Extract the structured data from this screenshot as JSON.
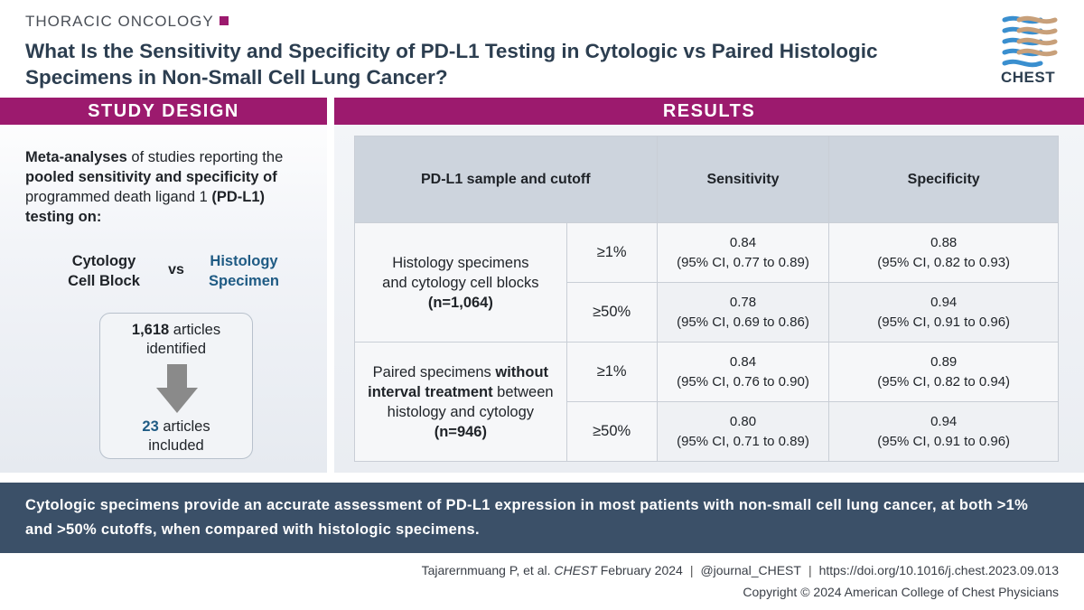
{
  "header": {
    "kicker": "THORACIC ONCOLOGY",
    "title": "What Is the Sensitivity and Specificity of PD-L1 Testing in Cytologic vs Paired Histologic Specimens in Non-Small Cell Lung Cancer?",
    "logo_text": "CHEST",
    "logo_icon": "chest-logo-icon",
    "accent_color": "#9c1a6e"
  },
  "study_design": {
    "heading": "STUDY DESIGN",
    "desc_b1": "Meta-analyses",
    "desc_t1": " of studies reporting the ",
    "desc_b2": "pooled sensitivity and specificity of",
    "desc_t2": " programmed death ligand 1 ",
    "desc_b3": "(PD-L1)",
    "desc_t3": " ",
    "desc_b4": "testing on:",
    "cytology_line1": "Cytology",
    "cytology_line2": "Cell Block",
    "vs": "vs",
    "histology_line1": "Histology",
    "histology_line2": "Specimen",
    "flow_top_num": "1,618",
    "flow_top_text1": " articles",
    "flow_top_text2": "identified",
    "flow_bot_num": "23",
    "flow_bot_text1": " articles",
    "flow_bot_text2": "included"
  },
  "results": {
    "heading": "RESULTS",
    "columns": [
      "PD-L1 sample and cutoff",
      "Sensitivity",
      "Specificity"
    ],
    "group1": {
      "line1": "Histology specimens",
      "line2": "and cytology cell blocks",
      "n": "(n=1,064)",
      "rows": [
        {
          "cutoff": "≥1%",
          "sens": "0.84",
          "sens_ci": "(95% CI, 0.77 to 0.89)",
          "spec": "0.88",
          "spec_ci": "(95% CI, 0.82 to 0.93)"
        },
        {
          "cutoff": "≥50%",
          "sens": "0.78",
          "sens_ci": "(95% CI, 0.69 to 0.86)",
          "spec": "0.94",
          "spec_ci": "(95% CI, 0.91 to 0.96)"
        }
      ]
    },
    "group2": {
      "t1": "Paired specimens ",
      "b1": "without",
      "b2": "interval treatment",
      "t2": " between",
      "t3": "histology and cytology",
      "n": "(n=946)",
      "rows": [
        {
          "cutoff": "≥1%",
          "sens": "0.84",
          "sens_ci": "(95% CI, 0.76 to 0.90)",
          "spec": "0.89",
          "spec_ci": "(95% CI, 0.82 to 0.94)"
        },
        {
          "cutoff": "≥50%",
          "sens": "0.80",
          "sens_ci": "(95% CI, 0.71 to 0.89)",
          "spec": "0.94",
          "spec_ci": "(95% CI, 0.91 to 0.96)"
        }
      ]
    }
  },
  "conclusion": "Cytologic specimens provide an accurate assessment of PD-L1 expression in most patients with non-small cell lung cancer, at both >1% and >50% cutoffs, when compared with histologic specimens.",
  "footer": {
    "authors": "Tajarernmuang P, et al.",
    "journal": "CHEST",
    "date": "February 2024",
    "handle": "@journal_CHEST",
    "doi": "https://doi.org/10.1016/j.chest.2023.09.013",
    "copyright": "Copyright © 2024 American College of Chest Physicians",
    "separator": "|"
  }
}
